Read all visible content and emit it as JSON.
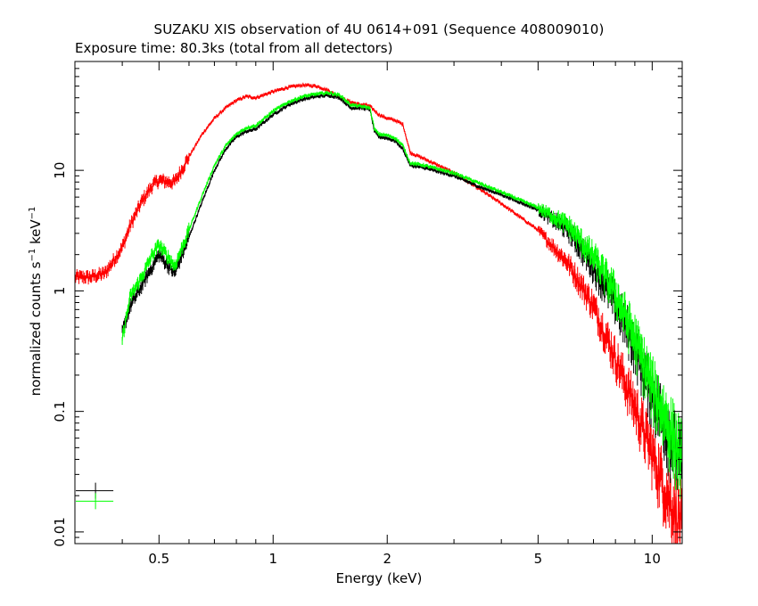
{
  "chart_data": {
    "type": "scatter",
    "title": "SUZAKU XIS observation of 4U 0614+091 (Sequence 408009010)",
    "subtitle": "Exposure time: 80.3ks (total from all detectors)",
    "xlabel": "Energy (keV)",
    "ylabel_text": "normalized counts s",
    "ylabel_exp1": "−1",
    "ylabel_mid": " keV",
    "ylabel_exp2": "−1",
    "x_scale": "log",
    "y_scale": "log",
    "xlim": [
      0.3,
      12
    ],
    "ylim": [
      0.008,
      80
    ],
    "x_ticks": [
      {
        "value": 0.5,
        "label": "0.5"
      },
      {
        "value": 1,
        "label": "1"
      },
      {
        "value": 2,
        "label": "2"
      },
      {
        "value": 5,
        "label": "5"
      },
      {
        "value": 10,
        "label": "10"
      }
    ],
    "y_ticks": [
      {
        "value": 0.01,
        "label": "0.01"
      },
      {
        "value": 0.1,
        "label": "0.1"
      },
      {
        "value": 1,
        "label": "1"
      },
      {
        "value": 10,
        "label": "10"
      }
    ],
    "series": [
      {
        "color": "#ff0000",
        "x": [
          0.3,
          0.33,
          0.36,
          0.38,
          0.4,
          0.42,
          0.45,
          0.48,
          0.5,
          0.53,
          0.55,
          0.6,
          0.65,
          0.7,
          0.75,
          0.8,
          0.85,
          0.9,
          1.0,
          1.1,
          1.2,
          1.3,
          1.4,
          1.5,
          1.6,
          1.7,
          1.75,
          1.8,
          1.9,
          2.0,
          2.1,
          2.2,
          2.3,
          2.5,
          3.0,
          3.5,
          4.0,
          5.0,
          6.0,
          7.0,
          8.0,
          9.0,
          10.0,
          11.0,
          12.0
        ],
        "y": [
          1.3,
          1.3,
          1.4,
          1.8,
          2.3,
          3.5,
          5.5,
          7.5,
          8.3,
          8.0,
          8.0,
          13.0,
          20.0,
          27.0,
          33.0,
          38.0,
          41.0,
          40.0,
          45.0,
          49.0,
          51.0,
          50.0,
          46.0,
          40.0,
          37.0,
          35.0,
          35.0,
          34.0,
          29.0,
          27.0,
          26.0,
          24.0,
          14.0,
          12.5,
          9.5,
          7.0,
          5.3,
          3.2,
          1.7,
          0.75,
          0.28,
          0.11,
          0.045,
          0.02,
          0.012
        ]
      },
      {
        "color": "#000000",
        "x": [
          0.4,
          0.42,
          0.45,
          0.48,
          0.5,
          0.53,
          0.55,
          0.6,
          0.65,
          0.7,
          0.75,
          0.8,
          0.85,
          0.9,
          1.0,
          1.1,
          1.2,
          1.3,
          1.4,
          1.5,
          1.6,
          1.7,
          1.8,
          1.85,
          1.9,
          2.0,
          2.1,
          2.2,
          2.3,
          2.5,
          3.0,
          3.5,
          4.0,
          5.0,
          6.0,
          7.0,
          8.0,
          9.0,
          10.0,
          11.0,
          12.0
        ],
        "y": [
          0.45,
          0.75,
          1.1,
          1.6,
          2.0,
          1.6,
          1.4,
          2.8,
          5.5,
          10.0,
          15.0,
          19.0,
          21.0,
          22.0,
          29.0,
          35.0,
          39.0,
          41.0,
          42.0,
          40.0,
          33.0,
          33.0,
          32.0,
          21.0,
          19.0,
          18.5,
          17.5,
          15.0,
          11.0,
          10.5,
          9.0,
          7.3,
          6.3,
          4.7,
          3.2,
          1.6,
          0.8,
          0.35,
          0.14,
          0.07,
          0.035
        ]
      },
      {
        "color": "#00ff00",
        "x": [
          0.4,
          0.42,
          0.45,
          0.48,
          0.5,
          0.53,
          0.55,
          0.6,
          0.65,
          0.7,
          0.75,
          0.8,
          0.85,
          0.9,
          1.0,
          1.1,
          1.2,
          1.3,
          1.4,
          1.5,
          1.6,
          1.7,
          1.8,
          1.85,
          1.9,
          2.0,
          2.1,
          2.2,
          2.3,
          2.5,
          3.0,
          3.5,
          4.0,
          5.0,
          6.0,
          7.0,
          8.0,
          9.0,
          10.0,
          11.0,
          12.0
        ],
        "y": [
          0.4,
          0.9,
          1.3,
          2.0,
          2.4,
          1.9,
          1.6,
          3.2,
          6.2,
          11.0,
          16.0,
          20.0,
          22.5,
          23.5,
          31.0,
          37.0,
          41.0,
          43.0,
          44.0,
          42.0,
          35.0,
          34.0,
          33.0,
          22.0,
          20.0,
          19.5,
          18.5,
          16.0,
          11.5,
          11.0,
          9.5,
          7.8,
          6.6,
          4.9,
          3.5,
          1.9,
          0.95,
          0.4,
          0.16,
          0.08,
          0.04
        ]
      }
    ],
    "legend_sample": [
      {
        "color": "#000000",
        "x": 0.34,
        "y": 0.022
      },
      {
        "color": "#00ff00",
        "x": 0.34,
        "y": 0.018
      }
    ]
  }
}
